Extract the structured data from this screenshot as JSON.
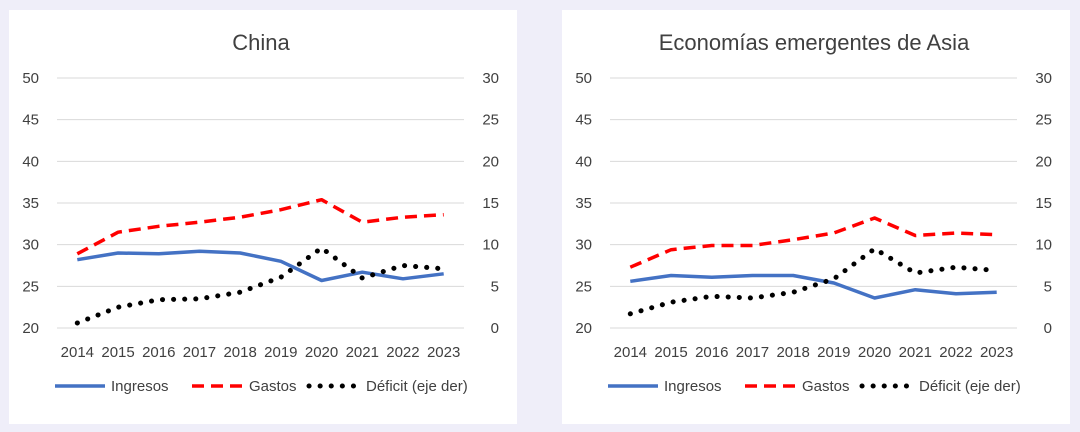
{
  "chart_data": [
    {
      "type": "line",
      "title": "China",
      "categories": [
        "2014",
        "2015",
        "2016",
        "2017",
        "2018",
        "2019",
        "2020",
        "2021",
        "2022",
        "2023"
      ],
      "y_left": {
        "ylim": [
          20,
          50
        ],
        "ticks": [
          "20",
          "25",
          "30",
          "35",
          "40",
          "45",
          "50"
        ]
      },
      "y_right": {
        "ylim": [
          0,
          30
        ],
        "ticks": [
          "0",
          "5",
          "10",
          "15",
          "20",
          "25",
          "30"
        ]
      },
      "grid": true,
      "legend_position": "bottom",
      "series": [
        {
          "name": "Ingresos",
          "axis": "left",
          "style": "solid",
          "color": "#4472c4",
          "values": [
            28.2,
            29.0,
            28.9,
            29.2,
            29.0,
            28.0,
            25.7,
            26.7,
            25.9,
            26.5
          ]
        },
        {
          "name": "Gastos",
          "axis": "left",
          "style": "dashed",
          "color": "#ff0000",
          "values": [
            28.9,
            31.5,
            32.2,
            32.7,
            33.3,
            34.2,
            35.4,
            32.7,
            33.3,
            33.6
          ]
        },
        {
          "name": "Déficit (eje der)",
          "axis": "right",
          "style": "dotted",
          "color": "#000000",
          "values": [
            0.6,
            2.5,
            3.4,
            3.5,
            4.3,
            6.1,
            9.6,
            6.0,
            7.5,
            7.1
          ]
        }
      ]
    },
    {
      "type": "line",
      "title": "Economías emergentes de Asia",
      "categories": [
        "2014",
        "2015",
        "2016",
        "2017",
        "2018",
        "2019",
        "2020",
        "2021",
        "2022",
        "2023"
      ],
      "y_left": {
        "ylim": [
          20,
          50
        ],
        "ticks": [
          "20",
          "25",
          "30",
          "35",
          "40",
          "45",
          "50"
        ]
      },
      "y_right": {
        "ylim": [
          0,
          30
        ],
        "ticks": [
          "0",
          "5",
          "10",
          "15",
          "20",
          "25",
          "30"
        ]
      },
      "grid": true,
      "legend_position": "bottom",
      "series": [
        {
          "name": "Ingresos",
          "axis": "left",
          "style": "solid",
          "color": "#4472c4",
          "values": [
            25.6,
            26.3,
            26.1,
            26.3,
            26.3,
            25.4,
            23.6,
            24.6,
            24.1,
            24.3
          ]
        },
        {
          "name": "Gastos",
          "axis": "left",
          "style": "dashed",
          "color": "#ff0000",
          "values": [
            27.3,
            29.4,
            29.9,
            29.9,
            30.6,
            31.4,
            33.2,
            31.1,
            31.4,
            31.2
          ]
        },
        {
          "name": "Déficit (eje der)",
          "axis": "right",
          "style": "dotted",
          "color": "#000000",
          "values": [
            1.7,
            3.1,
            3.8,
            3.6,
            4.3,
            5.9,
            9.5,
            6.6,
            7.3,
            6.9
          ]
        }
      ]
    }
  ]
}
